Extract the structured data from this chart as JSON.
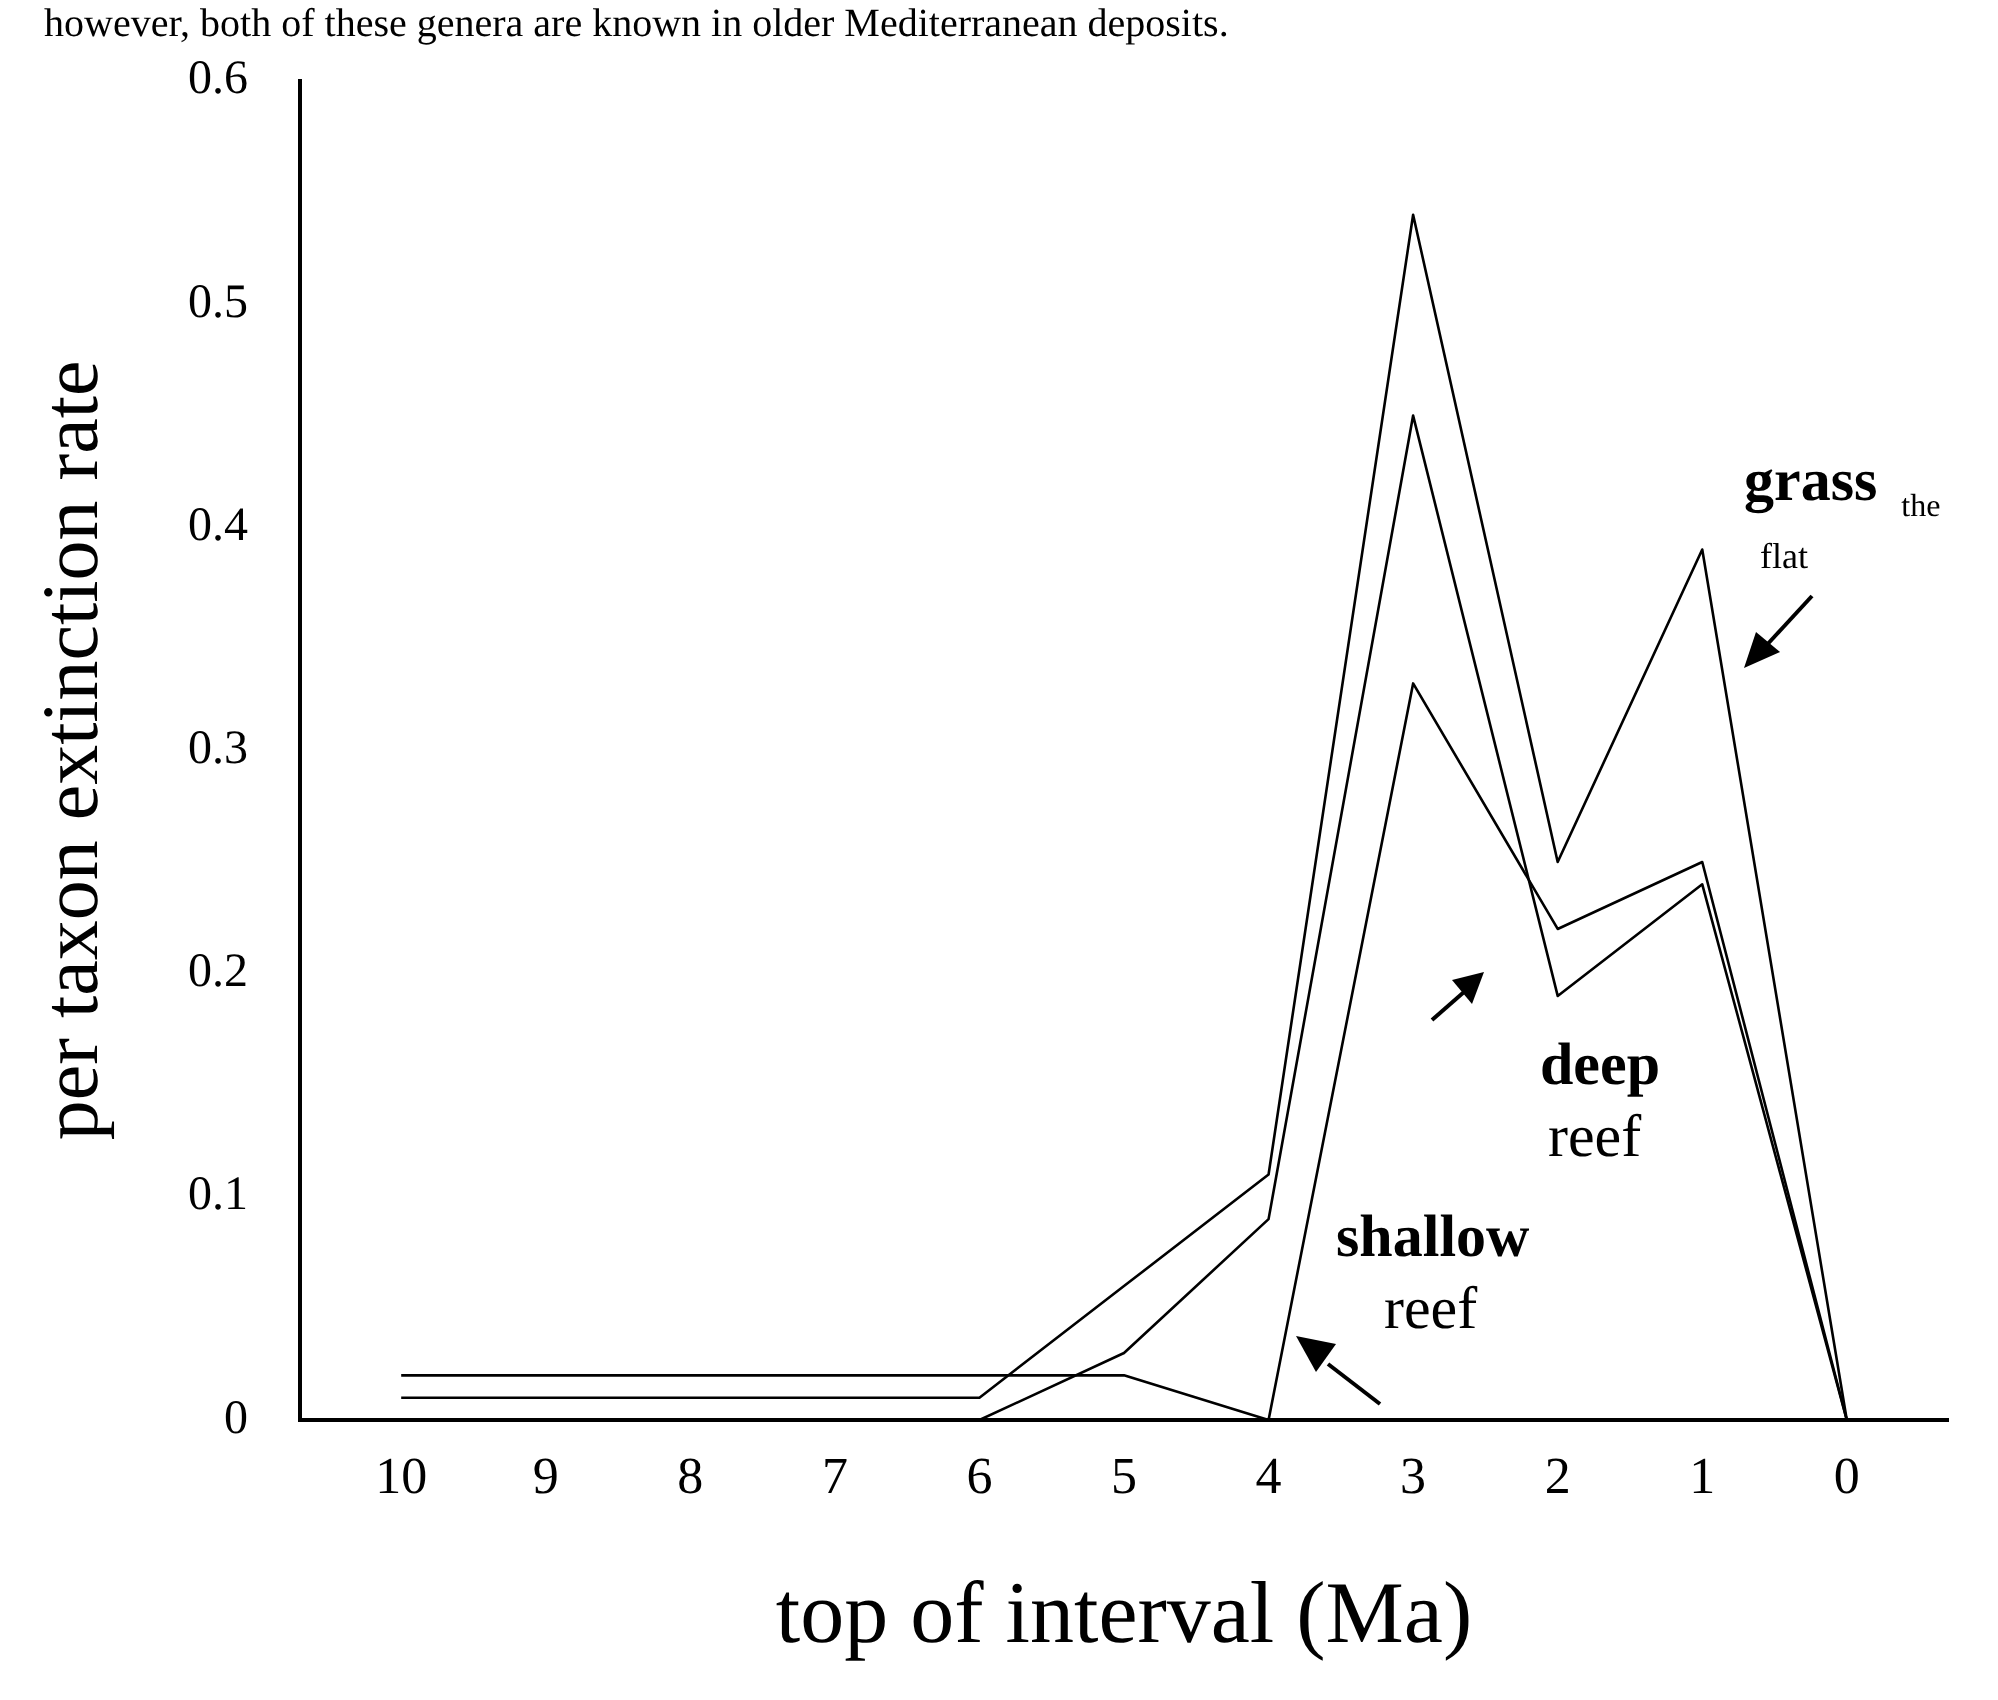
{
  "chart_data": {
    "type": "line",
    "annotations": [
      "however, both of these genera are known in older Mediterranean deposits."
    ],
    "xlabel": "top of interval (Ma)",
    "ylabel": "per taxon extinction rate",
    "x": [
      10,
      9,
      8,
      7,
      6,
      5,
      4,
      3,
      2,
      1,
      0
    ],
    "series": [
      {
        "name": "grass the flat",
        "color": "#000000",
        "values": [
          0.01,
          0.01,
          0.01,
          0.01,
          0.01,
          0.06,
          0.11,
          0.54,
          0.25,
          0.39,
          0
        ]
      },
      {
        "name": "deep reef",
        "color": "#000000",
        "values": [
          0,
          0,
          0,
          0,
          0,
          0.03,
          0.09,
          0.45,
          0.19,
          0.24,
          0
        ]
      },
      {
        "name": "shallow reef",
        "color": "#000000",
        "values": [
          0.02,
          0.02,
          0.02,
          0.02,
          0.02,
          0.02,
          0,
          0.33,
          0.22,
          0.25,
          0
        ]
      }
    ],
    "xlim": [
      10.7,
      -0.7
    ],
    "xticks": [
      10,
      9,
      8,
      7,
      6,
      5,
      4,
      3,
      2,
      1,
      0
    ],
    "ylim": [
      0,
      0.6
    ],
    "yticks": [
      0,
      0.1,
      0.2,
      0.3,
      0.4,
      0.5,
      0.6
    ],
    "grid": false,
    "legend": false,
    "marker": "none",
    "line_style": "solid"
  }
}
